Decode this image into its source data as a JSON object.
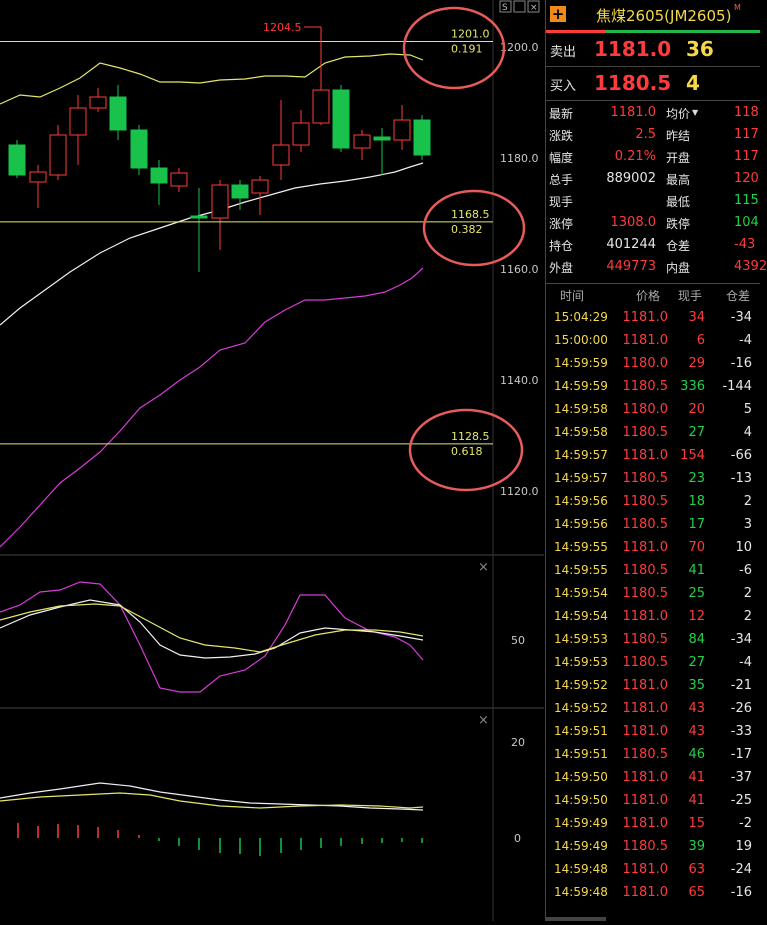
{
  "chart": {
    "price_labels": [
      "1200.0",
      "1180.0",
      "1160.0",
      "1140.0",
      "1120.0"
    ],
    "fib_lines": [
      {
        "price": "1201.0",
        "ratio": "0.191"
      },
      {
        "price": "1168.5",
        "ratio": "0.382"
      },
      {
        "price": "1128.5",
        "ratio": "0.618"
      }
    ],
    "high_marker": "1204.5",
    "osc1_label": "50",
    "osc2_labels": [
      "20",
      "0"
    ],
    "colors": {
      "up": "#ff3b3b",
      "down": "#19c24a",
      "fib": "#e5e66b",
      "ma_yellow": "#e5e66b",
      "ma_white": "#f0f0f0",
      "ma_magenta": "#d63cd6",
      "circle": "#e85b5b"
    }
  },
  "quote": {
    "add_icon": "plus-icon",
    "title": "焦煤2605(JM2605)",
    "title_sup": "M",
    "sell_label": "卖出",
    "sell_price": "1181.0",
    "sell_vol": "36",
    "buy_label": "买入",
    "buy_price": "1180.5",
    "buy_vol": "4",
    "stats": [
      {
        "l": "最新",
        "v": "1181.0",
        "l2": "均价",
        "v2": "118"
      },
      {
        "l": "涨跌",
        "v": "2.5",
        "l2": "昨结",
        "v2": "117"
      },
      {
        "l": "幅度",
        "v": "0.21%",
        "l2": "开盘",
        "v2": "117"
      },
      {
        "l": "总手",
        "v": "889002",
        "l2": "最高",
        "v2": "120"
      },
      {
        "l": "现手",
        "v": "",
        "l2": "最低",
        "v2": "115"
      },
      {
        "l": "涨停",
        "v": "1308.0",
        "l2": "跌停",
        "v2": "104"
      },
      {
        "l": "持仓",
        "v": "401244",
        "l2": "仓差",
        "v2": "-43"
      },
      {
        "l": "外盘",
        "v": "449773",
        "l2": "内盘",
        "v2": "4392"
      }
    ],
    "tick_headers": [
      "时间",
      "价格",
      "现手",
      "仓差"
    ],
    "ticks": [
      [
        "15:04:29",
        "1181.0",
        "34",
        "-34"
      ],
      [
        "15:00:00",
        "1181.0",
        "6",
        "-4"
      ],
      [
        "14:59:59",
        "1180.0",
        "29",
        "-16"
      ],
      [
        "14:59:59",
        "1180.5",
        "336",
        "-144"
      ],
      [
        "14:59:58",
        "1180.0",
        "20",
        "5"
      ],
      [
        "14:59:58",
        "1180.5",
        "27",
        "4"
      ],
      [
        "14:59:57",
        "1181.0",
        "154",
        "-66"
      ],
      [
        "14:59:57",
        "1180.5",
        "23",
        "-13"
      ],
      [
        "14:59:56",
        "1180.5",
        "18",
        "2"
      ],
      [
        "14:59:56",
        "1180.5",
        "17",
        "3"
      ],
      [
        "14:59:55",
        "1181.0",
        "70",
        "10"
      ],
      [
        "14:59:55",
        "1180.5",
        "41",
        "-6"
      ],
      [
        "14:59:54",
        "1180.5",
        "25",
        "2"
      ],
      [
        "14:59:54",
        "1181.0",
        "12",
        "2"
      ],
      [
        "14:59:53",
        "1180.5",
        "84",
        "-34"
      ],
      [
        "14:59:53",
        "1180.5",
        "27",
        "-4"
      ],
      [
        "14:59:52",
        "1181.0",
        "35",
        "-21"
      ],
      [
        "14:59:52",
        "1181.0",
        "43",
        "-26"
      ],
      [
        "14:59:51",
        "1181.0",
        "43",
        "-33"
      ],
      [
        "14:59:51",
        "1180.5",
        "46",
        "-17"
      ],
      [
        "14:59:50",
        "1181.0",
        "41",
        "-37"
      ],
      [
        "14:59:50",
        "1181.0",
        "41",
        "-25"
      ],
      [
        "14:59:49",
        "1181.0",
        "15",
        "-2"
      ],
      [
        "14:59:49",
        "1180.5",
        "39",
        "19"
      ],
      [
        "14:59:48",
        "1181.0",
        "63",
        "-24"
      ],
      [
        "14:59:48",
        "1181.0",
        "65",
        "-16"
      ]
    ],
    "tick_colors": {
      "price": [
        "r",
        "r",
        "r",
        "r",
        "r",
        "r",
        "r",
        "r",
        "r",
        "r",
        "r",
        "r",
        "r",
        "r",
        "r",
        "r",
        "r",
        "r",
        "r",
        "r",
        "r",
        "r",
        "r",
        "r",
        "r",
        "r"
      ],
      "vol": [
        "r",
        "r",
        "r",
        "g",
        "r",
        "g",
        "r",
        "g",
        "g",
        "g",
        "r",
        "g",
        "g",
        "r",
        "g",
        "g",
        "g",
        "r",
        "r",
        "g",
        "r",
        "r",
        "r",
        "g",
        "r",
        "r"
      ]
    }
  }
}
